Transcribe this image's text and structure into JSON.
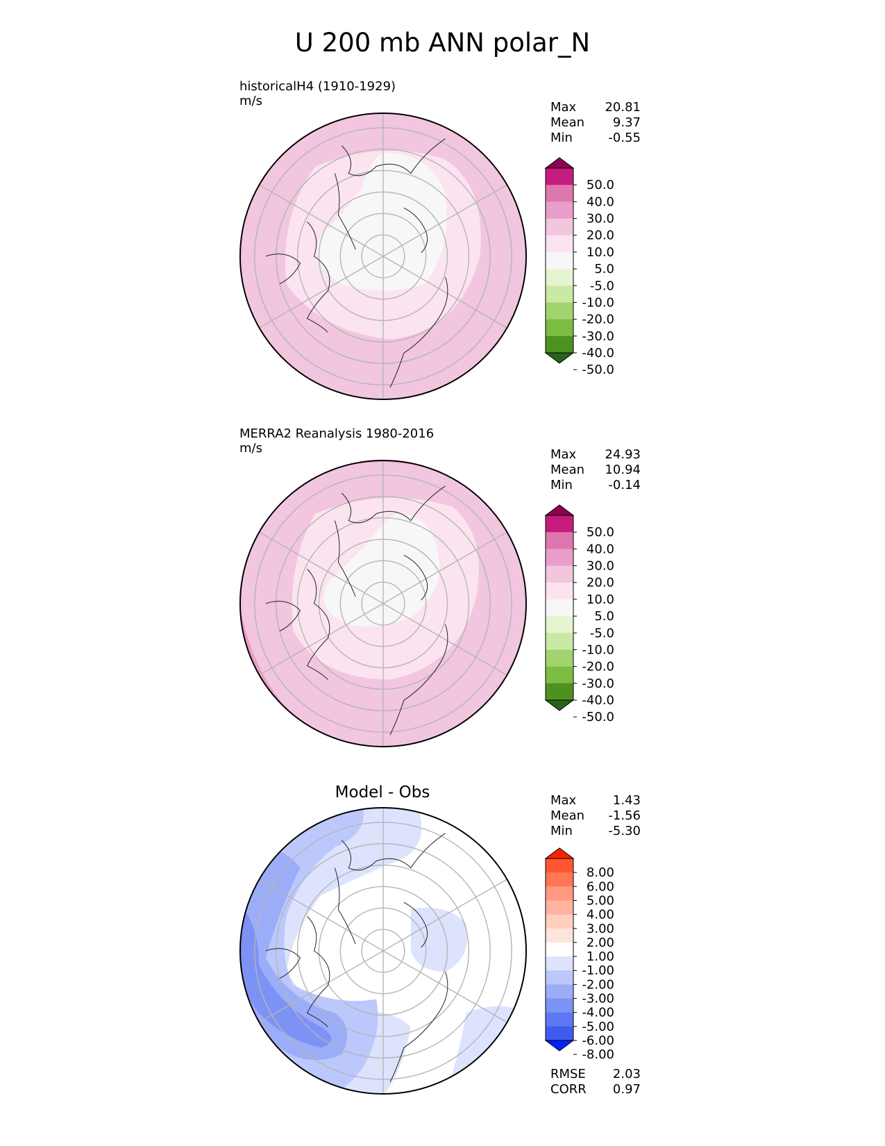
{
  "title": "U 200 mb ANN polar_N",
  "panels": [
    {
      "label": "historicalH4 (1910-1929)",
      "units": "m/s",
      "stats": [
        {
          "name": "Max",
          "value": "20.81"
        },
        {
          "name": "Mean",
          "value": "9.37"
        },
        {
          "name": "Min",
          "value": "-0.55"
        }
      ],
      "colorbar": {
        "ticks": [
          "50.0",
          "40.0",
          "30.0",
          "20.0",
          "10.0",
          "5.0",
          "-5.0",
          "-10.0",
          "-20.0",
          "-30.0",
          "-40.0",
          "-50.0"
        ],
        "colors": [
          "#8e0152",
          "#c51b7d",
          "#de77ae",
          "#e89ec8",
          "#f1c6de",
          "#fbe4ef",
          "#f7f7f7",
          "#e6f5d0",
          "#c9e9a4",
          "#a1d46e",
          "#7cbc43",
          "#4d9221",
          "#276419"
        ]
      }
    },
    {
      "label": "MERRA2 Reanalysis 1980-2016",
      "units": "m/s",
      "stats": [
        {
          "name": "Max",
          "value": "24.93"
        },
        {
          "name": "Mean",
          "value": "10.94"
        },
        {
          "name": "Min",
          "value": "-0.14"
        }
      ],
      "colorbar": {
        "ticks": [
          "50.0",
          "40.0",
          "30.0",
          "20.0",
          "10.0",
          "5.0",
          "-5.0",
          "-10.0",
          "-20.0",
          "-30.0",
          "-40.0",
          "-50.0"
        ],
        "colors": [
          "#8e0152",
          "#c51b7d",
          "#de77ae",
          "#e89ec8",
          "#f1c6de",
          "#fbe4ef",
          "#f7f7f7",
          "#e6f5d0",
          "#c9e9a4",
          "#a1d46e",
          "#7cbc43",
          "#4d9221",
          "#276419"
        ]
      }
    },
    {
      "title": "Model - Obs",
      "stats": [
        {
          "name": "Max",
          "value": "1.43"
        },
        {
          "name": "Mean",
          "value": "-1.56"
        },
        {
          "name": "Min",
          "value": "-5.30"
        }
      ],
      "colorbar": {
        "ticks": [
          "8.00",
          "6.00",
          "5.00",
          "4.00",
          "3.00",
          "2.00",
          "1.00",
          "-1.00",
          "-2.00",
          "-3.00",
          "-4.00",
          "-5.00",
          "-6.00",
          "-8.00"
        ],
        "colors": [
          "#ff2200",
          "#ff5533",
          "#ff7755",
          "#ff9980",
          "#ffb3a0",
          "#ffcfc0",
          "#fde4dc",
          "#ffffff",
          "#dde3fd",
          "#bcc8fb",
          "#9cadf8",
          "#7d92f5",
          "#5e77f2",
          "#3f5cef",
          "#0022ff"
        ]
      },
      "metrics": [
        {
          "name": "RMSE",
          "value": "2.03"
        },
        {
          "name": "CORR",
          "value": "0.97"
        }
      ]
    }
  ]
}
